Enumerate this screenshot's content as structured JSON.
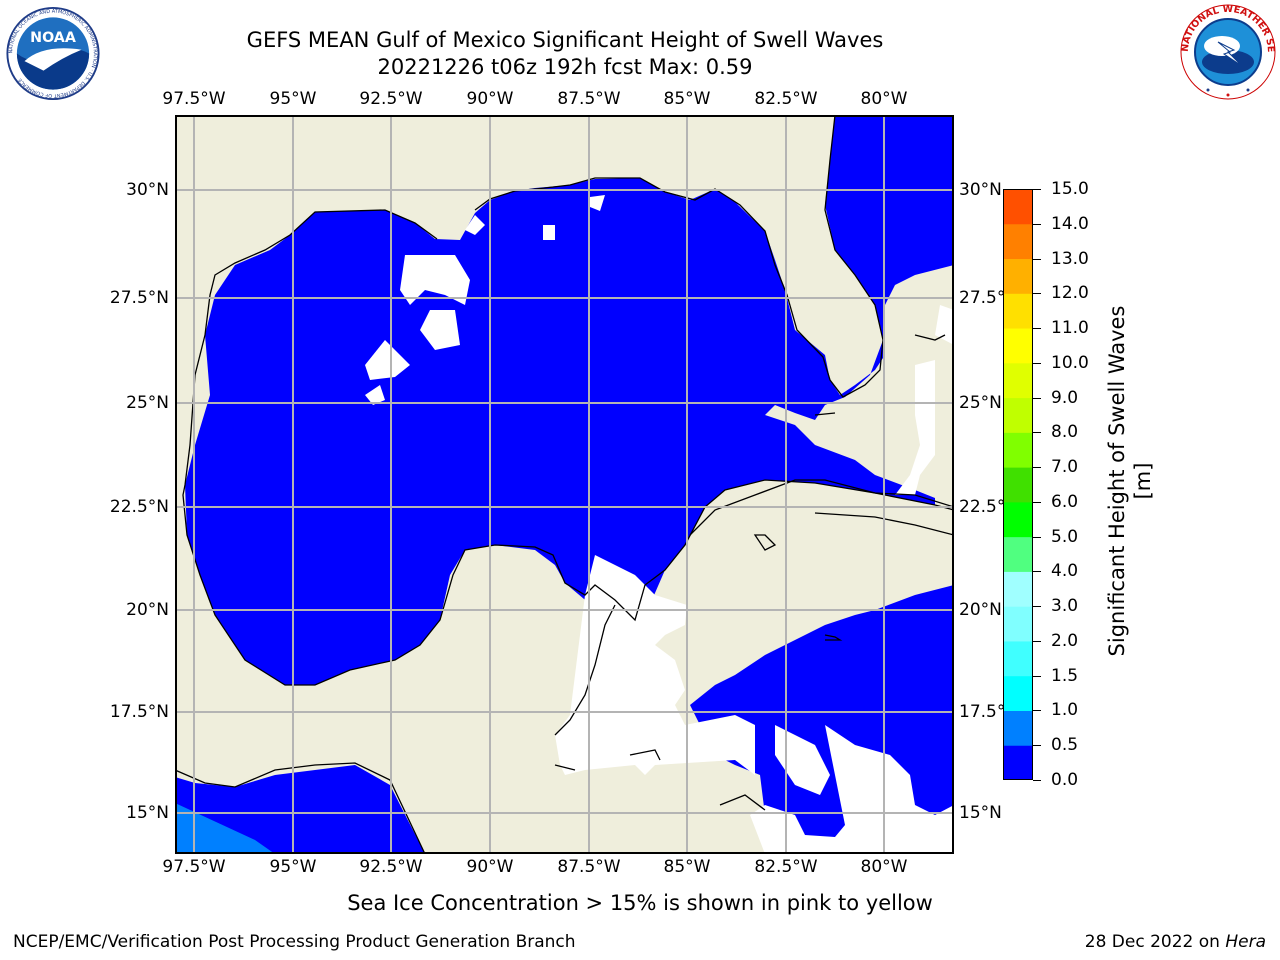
{
  "title_line1": "GEFS MEAN Gulf of Mexico Significant Height of Swell Waves",
  "title_line2": "20221226 t06z 192h fcst   Max: 0.59",
  "logos": {
    "noaa_text": "NOAA",
    "noaa_ring_text": "NATIONAL OCEANIC AND ATMOSPHERIC ADMINISTRATION · U.S. DEPARTMENT OF COMMERCE",
    "nws_ring_text": "NATIONAL WEATHER SERVICE"
  },
  "map": {
    "lon_ticks": [
      "97.5°W",
      "95°W",
      "92.5°W",
      "90°W",
      "87.5°W",
      "85°W",
      "82.5°W",
      "80°W"
    ],
    "lat_ticks_left": [
      "30°N",
      "27.5°N",
      "25°N",
      "22.5°N",
      "20°N",
      "17.5°N",
      "15°N"
    ],
    "lat_ticks_right": [
      "30°N",
      "27.5°N",
      "25°N",
      "22.5°N",
      "20°N",
      "17.5°N",
      "15°N"
    ],
    "colors": {
      "land": "#efeedc",
      "water_0_0.5": "#0000ff",
      "water_0.5_1": "#0080ff",
      "no_data": "#ffffff",
      "grid": "#b4b4b4"
    }
  },
  "colorbar": {
    "label": "Significant Height of Swell Waves [m]",
    "ticks": [
      "0.0",
      "0.5",
      "1.0",
      "1.5",
      "2.0",
      "3.0",
      "4.0",
      "5.0",
      "6.0",
      "7.0",
      "8.0",
      "9.0",
      "10.0",
      "11.0",
      "12.0",
      "13.0",
      "14.0",
      "15.0"
    ],
    "colors": [
      "#0000ff",
      "#0080ff",
      "#00ffff",
      "#40ffff",
      "#80ffff",
      "#a0ffff",
      "#50ff80",
      "#00ff00",
      "#40e000",
      "#80ff00",
      "#c0ff00",
      "#e0ff00",
      "#ffff00",
      "#ffe000",
      "#ffb000",
      "#ff8000",
      "#ff5000",
      "#ff2000",
      "#ff0000"
    ]
  },
  "ice_note": "Sea Ice Concentration > 15% is shown in pink to yellow",
  "footer_left": "NCEP/EMC/Verification Post Processing Product Generation Branch",
  "footer_date": "28 Dec 2022 on ",
  "footer_machine": "Hera"
}
